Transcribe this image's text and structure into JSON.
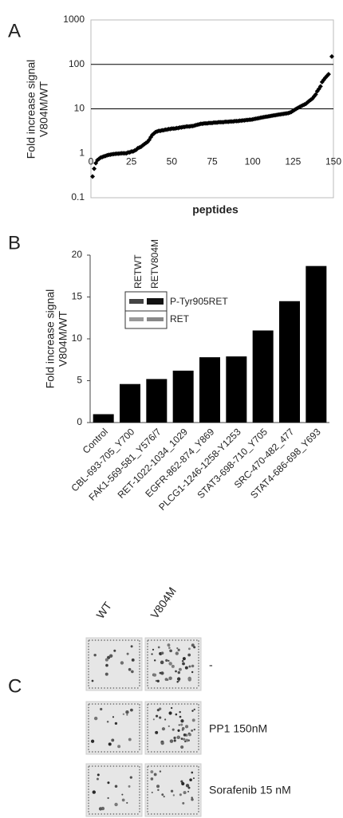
{
  "chart_data": [
    {
      "type": "scatter",
      "panel_label": "A",
      "ylabel": [
        "Fold increase signal",
        "V804M/WT"
      ],
      "xlabel": "peptides",
      "yscale": "log",
      "ylim": [
        0.1,
        1000
      ],
      "yticks": [
        0.1,
        1,
        10,
        100,
        1000
      ],
      "xaxis_crosses": 1,
      "grid": true,
      "xlim": [
        0,
        150
      ],
      "xticks": [
        0,
        25,
        50,
        75,
        100,
        125,
        150
      ],
      "color": "#000000",
      "x": [
        1,
        2,
        3,
        4,
        5,
        6,
        7,
        8,
        9,
        10,
        11,
        12,
        13,
        14,
        15,
        16,
        17,
        18,
        19,
        20,
        21,
        22,
        23,
        24,
        25,
        26,
        27,
        28,
        29,
        30,
        31,
        32,
        33,
        34,
        35,
        36,
        37,
        38,
        39,
        40,
        41,
        42,
        43,
        44,
        45,
        46,
        47,
        48,
        49,
        50,
        51,
        52,
        53,
        54,
        55,
        56,
        57,
        58,
        59,
        60,
        61,
        62,
        63,
        64,
        65,
        66,
        67,
        68,
        69,
        70,
        71,
        72,
        73,
        74,
        75,
        76,
        77,
        78,
        79,
        80,
        81,
        82,
        83,
        84,
        85,
        86,
        87,
        88,
        89,
        90,
        91,
        92,
        93,
        94,
        95,
        96,
        97,
        98,
        99,
        100,
        101,
        102,
        103,
        104,
        105,
        106,
        107,
        108,
        109,
        110,
        111,
        112,
        113,
        114,
        115,
        116,
        117,
        118,
        119,
        120,
        121,
        122,
        123,
        124,
        125,
        126,
        127,
        128,
        129,
        130,
        131,
        132,
        133,
        134,
        135,
        136,
        137,
        138,
        139,
        140,
        141,
        142,
        143,
        144,
        145,
        146,
        147,
        149
      ],
      "values": [
        0.3,
        0.45,
        0.6,
        0.7,
        0.75,
        0.8,
        0.82,
        0.85,
        0.87,
        0.9,
        0.92,
        0.93,
        0.95,
        0.96,
        0.97,
        0.98,
        0.98,
        0.99,
        1.0,
        1.0,
        1.0,
        1.0,
        1.05,
        1.05,
        1.1,
        1.1,
        1.15,
        1.2,
        1.3,
        1.35,
        1.4,
        1.5,
        1.6,
        1.7,
        1.8,
        2.0,
        2.3,
        2.6,
        2.8,
        3.0,
        3.1,
        3.2,
        3.2,
        3.3,
        3.3,
        3.4,
        3.4,
        3.5,
        3.5,
        3.6,
        3.6,
        3.6,
        3.7,
        3.7,
        3.8,
        3.8,
        3.9,
        3.9,
        4.0,
        4.0,
        4.0,
        4.1,
        4.1,
        4.2,
        4.3,
        4.4,
        4.5,
        4.6,
        4.6,
        4.7,
        4.7,
        4.7,
        4.8,
        4.8,
        4.8,
        4.9,
        4.9,
        4.9,
        5.0,
        5.0,
        5.0,
        5.0,
        5.1,
        5.1,
        5.1,
        5.2,
        5.2,
        5.2,
        5.3,
        5.3,
        5.3,
        5.4,
        5.4,
        5.5,
        5.5,
        5.6,
        5.6,
        5.7,
        5.7,
        5.8,
        5.9,
        6.0,
        6.1,
        6.2,
        6.3,
        6.4,
        6.5,
        6.6,
        6.7,
        6.8,
        6.9,
        7.0,
        7.1,
        7.2,
        7.3,
        7.4,
        7.5,
        7.6,
        7.7,
        7.8,
        7.9,
        8.0,
        8.2,
        8.5,
        9.0,
        9.5,
        10,
        10.5,
        11,
        11.5,
        12,
        12.5,
        13,
        14,
        15,
        16,
        17,
        19,
        21,
        25,
        28,
        32,
        40,
        45,
        50,
        55,
        60,
        150
      ]
    },
    {
      "type": "bar",
      "panel_label": "B",
      "ylabel": [
        "Fold increase signal",
        "V804M/WT"
      ],
      "categories": [
        "Control",
        "CBL-693-705_Y700",
        "FAK1-569-581_Y576/7",
        "RET-1022-1034_1029",
        "EGFR-862-874_Y869",
        "PLCG1-1246-1258-Y1253",
        "STAT3-698-710_Y705",
        "SRC-470-482_477",
        "STAT4-686-698_Y693"
      ],
      "values": [
        1.0,
        4.6,
        5.2,
        6.2,
        7.8,
        7.9,
        11.0,
        14.5,
        18.7
      ],
      "color": "#000000",
      "ylim": [
        0,
        20
      ],
      "yticks": [
        0,
        5,
        10,
        15,
        20
      ],
      "inset": {
        "lanes": [
          "RETWT",
          "RETV804M"
        ],
        "bands": [
          "P-Tyr905RET",
          "RET"
        ]
      }
    }
  ],
  "array_panel": {
    "panel_label": "C",
    "columns": [
      "WT",
      "V804M"
    ],
    "rows": [
      "-",
      "PP1 150nM",
      "Sorafenib 15 nM"
    ]
  }
}
